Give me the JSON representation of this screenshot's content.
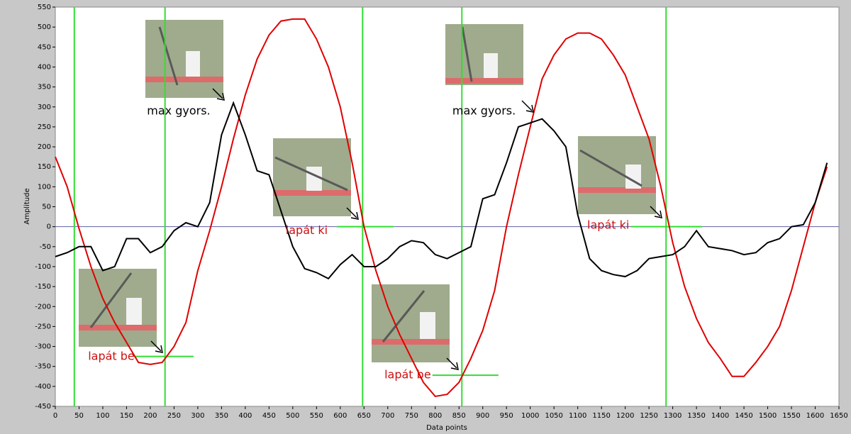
{
  "chart_data": {
    "type": "line",
    "x_label": "Data points",
    "y_label": "Amplitude",
    "x": [
      0,
      25,
      50,
      75,
      100,
      125,
      150,
      175,
      200,
      225,
      250,
      275,
      300,
      325,
      350,
      375,
      400,
      425,
      450,
      475,
      500,
      525,
      550,
      575,
      600,
      625,
      650,
      675,
      700,
      725,
      750,
      775,
      800,
      825,
      850,
      875,
      900,
      925,
      950,
      975,
      1000,
      1025,
      1050,
      1075,
      1100,
      1125,
      1150,
      1175,
      1200,
      1225,
      1250,
      1275,
      1300,
      1325,
      1350,
      1375,
      1400,
      1425,
      1450,
      1475,
      1500,
      1525,
      1550,
      1575,
      1600,
      1625
    ],
    "series": [
      {
        "color": "#e00000",
        "values": [
          175,
          100,
          -5,
          -100,
          -180,
          -240,
          -290,
          -340,
          -345,
          -340,
          -300,
          -240,
          -110,
          -10,
          100,
          220,
          330,
          420,
          480,
          515,
          520,
          520,
          470,
          400,
          300,
          160,
          0,
          -110,
          -200,
          -270,
          -330,
          -390,
          -425,
          -420,
          -390,
          -330,
          -260,
          -160,
          0,
          130,
          250,
          370,
          430,
          470,
          485,
          485,
          470,
          430,
          380,
          300,
          220,
          100,
          -40,
          -150,
          -230,
          -290,
          -330,
          -375,
          -375,
          -340,
          -300,
          -250,
          -160,
          -50,
          60,
          150
        ]
      },
      {
        "color": "#000000",
        "values": [
          -75,
          -65,
          -50,
          -50,
          -110,
          -100,
          -30,
          -30,
          -65,
          -50,
          -10,
          10,
          0,
          60,
          230,
          310,
          230,
          140,
          130,
          40,
          -50,
          -105,
          -115,
          -130,
          -95,
          -70,
          -100,
          -100,
          -80,
          -50,
          -35,
          -40,
          -70,
          -80,
          -65,
          -50,
          70,
          80,
          160,
          250,
          260,
          270,
          240,
          200,
          30,
          -80,
          -110,
          -120,
          -125,
          -110,
          -80,
          -75,
          -70,
          -50,
          -10,
          -50,
          -55,
          -60,
          -70,
          -65,
          -40,
          -30,
          0,
          5,
          60,
          160
        ]
      }
    ],
    "cursors": [
      40,
      231,
      647,
      856,
      1286
    ],
    "cursor_color": "#33dd33",
    "hlines": [
      {
        "x1": 167,
        "x2": 291,
        "y": -325
      },
      {
        "x1": 593,
        "x2": 712,
        "y": 0
      },
      {
        "x1": 794,
        "x2": 933,
        "y": -372
      },
      {
        "x1": 1212,
        "x2": 1362,
        "y": 0
      }
    ],
    "annotations": [
      {
        "text": "max gyors.",
        "x": 193,
        "y": 289,
        "color": "#000000"
      },
      {
        "text": "max gyors.",
        "x": 836,
        "y": 289,
        "color": "#000000"
      },
      {
        "text": "lapát ki",
        "x": 485,
        "y": -10,
        "color": "#cc1010"
      },
      {
        "text": "lapát ki",
        "x": 1120,
        "y": 3,
        "color": "#cc1010"
      },
      {
        "text": "lapát be",
        "x": 69,
        "y": -326,
        "color": "#cc1010"
      },
      {
        "text": "lapát be",
        "x": 693,
        "y": -372,
        "color": "#cc1010"
      }
    ],
    "xlim": [
      0,
      1650
    ],
    "ylim": [
      -450,
      550
    ],
    "xticks": [
      0,
      50,
      100,
      150,
      200,
      250,
      300,
      350,
      400,
      450,
      500,
      550,
      600,
      650,
      700,
      750,
      800,
      850,
      900,
      950,
      1000,
      1050,
      1100,
      1150,
      1200,
      1250,
      1300,
      1350,
      1400,
      1450,
      1500,
      1550,
      1600,
      1650
    ],
    "yticks": [
      -450,
      -400,
      -350,
      -300,
      -250,
      -200,
      -150,
      -100,
      -50,
      0,
      50,
      100,
      150,
      200,
      250,
      300,
      350,
      400,
      450,
      500,
      550
    ]
  }
}
